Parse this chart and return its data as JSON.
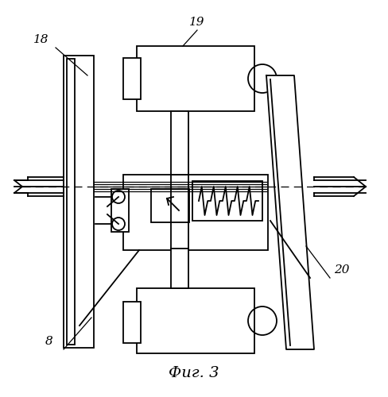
{
  "title": "Фиг. 3",
  "title_fontsize": 14,
  "bg_color": "#ffffff",
  "line_color": "#000000",
  "fig_width": 4.89,
  "fig_height": 5.0,
  "dpi": 100,
  "label_18": "18",
  "label_19": "19",
  "label_20": "20",
  "label_8": "8"
}
